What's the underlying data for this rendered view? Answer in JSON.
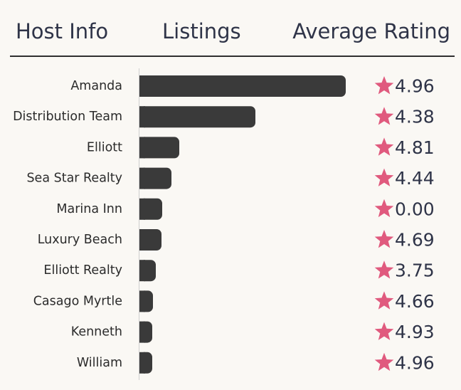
{
  "header": {
    "host": "Host Info",
    "listings": "Listings",
    "rating": "Average Rating"
  },
  "colors": {
    "bar": "#3a3a3a",
    "star": "#e05a7e",
    "text": "#2f3448",
    "background": "#faf8f4"
  },
  "chart_data": {
    "type": "bar",
    "orientation": "horizontal",
    "categories": [
      "Amanda",
      "Distribution Team",
      "Elliott",
      "Sea Star Realty",
      "Marina Inn",
      "Luxury Beach",
      "Elliott Realty",
      "Casago Myrtle",
      "Kenneth",
      "William"
    ],
    "values": [
      290,
      163,
      56,
      45,
      32,
      31,
      23,
      19,
      18,
      18
    ],
    "ratings": [
      "4.96",
      "4.38",
      "4.81",
      "4.44",
      "0.00",
      "4.69",
      "3.75",
      "4.66",
      "4.93",
      "4.96"
    ],
    "xlim": [
      0,
      290
    ],
    "grid": false
  }
}
